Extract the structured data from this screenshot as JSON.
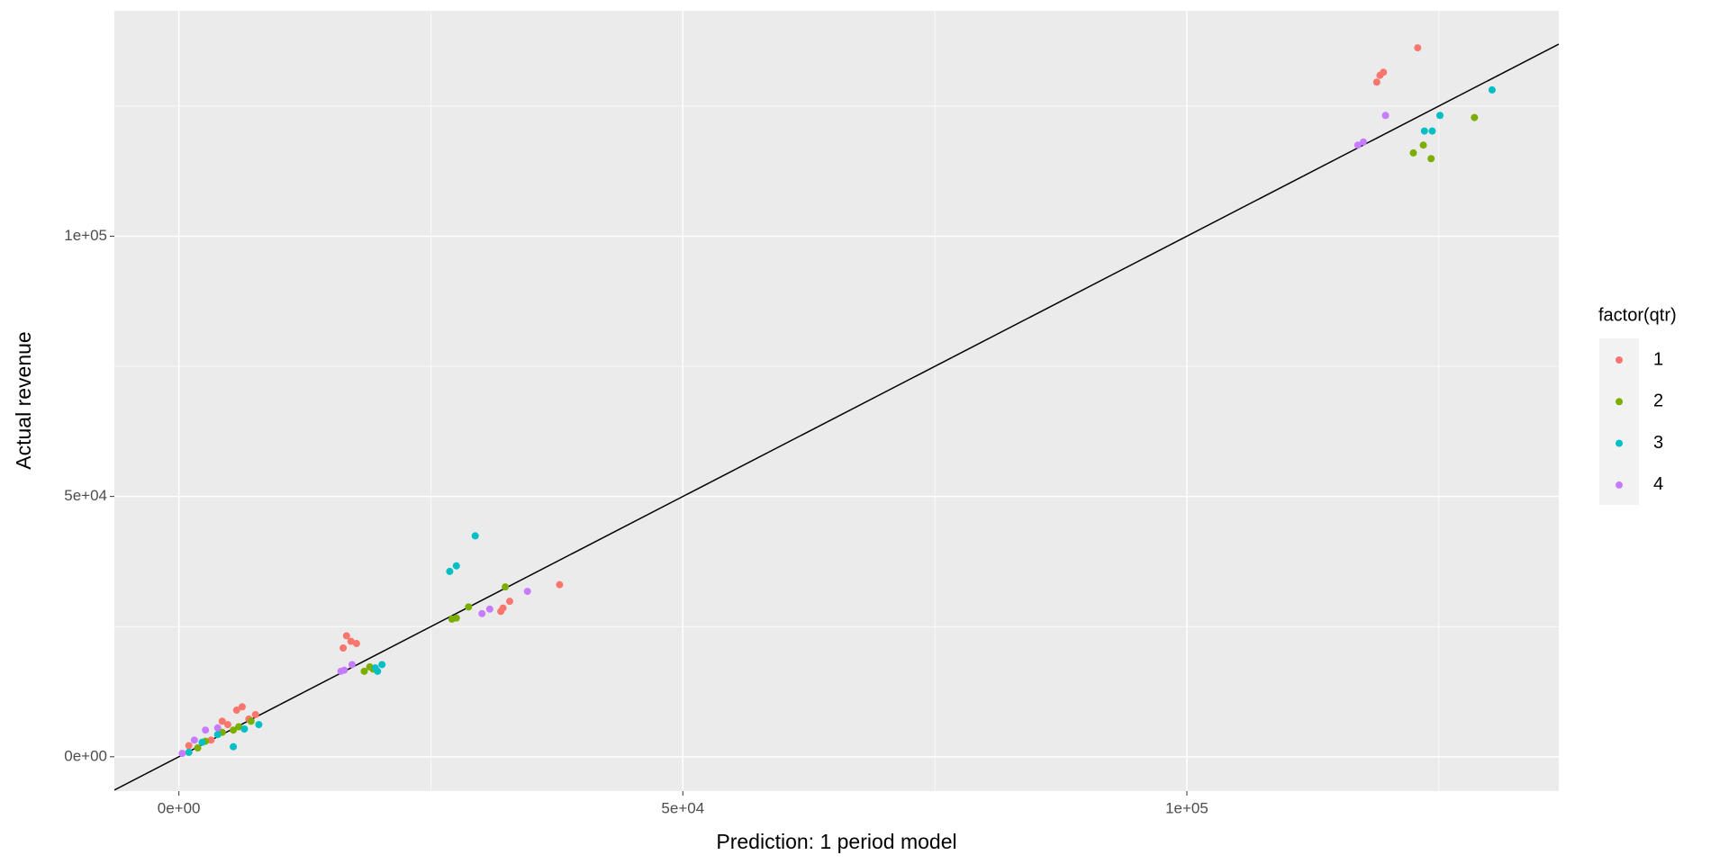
{
  "chart_data": {
    "type": "scatter",
    "x_label": "Prediction: 1 period model",
    "y_label": "Actual revenue",
    "legend_title": "factor(qtr)",
    "legend_position": "right",
    "grid": true,
    "xlim": [
      -6400,
      136900
    ],
    "ylim": [
      -6600,
      143300
    ],
    "xticks": [
      {
        "value": 0,
        "label": "0e+00"
      },
      {
        "value": 50000,
        "label": "5e+04"
      },
      {
        "value": 100000,
        "label": "1e+05"
      }
    ],
    "yticks": [
      {
        "value": 0,
        "label": "0e+00"
      },
      {
        "value": 50000,
        "label": "5e+04"
      },
      {
        "value": 100000,
        "label": "1e+05"
      }
    ],
    "x_minor_grid": [
      25000,
      75000,
      125000
    ],
    "y_minor_grid": [
      25000,
      75000,
      125000
    ],
    "reference_line": {
      "slope": 1,
      "intercept": 0
    },
    "series": [
      {
        "name": "1",
        "color": "#F8766D",
        "x": [
          122900,
          118840,
          119160,
          119500,
          37770,
          32820,
          32160,
          31940,
          16630,
          16300,
          17070,
          17620,
          5730,
          6280,
          4850,
          4300,
          7600,
          3190,
          990,
          6940
        ],
        "values": [
          136200,
          129600,
          130900,
          131500,
          33050,
          29850,
          28570,
          27930,
          23240,
          20890,
          22170,
          21750,
          8950,
          9590,
          6180,
          6820,
          8100,
          3200,
          2130,
          7250
        ]
      },
      {
        "name": "2",
        "color": "#7CAE00",
        "x": [
          128530,
          124230,
          123460,
          122470,
          32380,
          28740,
          27530,
          27090,
          18390,
          19270,
          18940,
          2640,
          4300,
          5950,
          7160,
          1870,
          5400
        ],
        "values": [
          122800,
          114900,
          117500,
          116000,
          32620,
          28780,
          26650,
          26440,
          16420,
          16840,
          17270,
          2980,
          4690,
          5760,
          6820,
          1700,
          5120
        ]
      },
      {
        "name": "3",
        "color": "#00BFC4",
        "x": [
          130280,
          125110,
          124340,
          123570,
          29400,
          27530,
          26870,
          20150,
          19490,
          19710,
          5400,
          7930,
          3850,
          990,
          2310,
          6500
        ],
        "values": [
          128100,
          123200,
          120200,
          120200,
          42430,
          36670,
          35600,
          17700,
          17060,
          16420,
          1920,
          6180,
          4260,
          850,
          2770,
          5330
        ]
      },
      {
        "name": "4",
        "color": "#C77CFF",
        "x": [
          119710,
          117510,
          116960,
          34580,
          30840,
          30070,
          17180,
          16410,
          16080,
          2640,
          330,
          3850,
          1540
        ],
        "values": [
          123200,
          118100,
          117500,
          31770,
          28360,
          27500,
          17700,
          16630,
          16420,
          5120,
          640,
          5540,
          3200
        ]
      }
    ]
  }
}
